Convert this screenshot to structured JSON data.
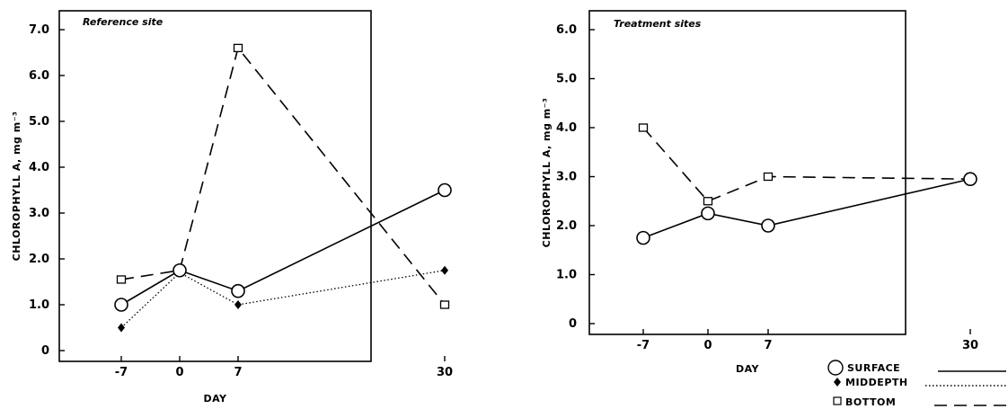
{
  "chart_data": [
    {
      "type": "line",
      "title": "Reference site",
      "xlabel": "DAY",
      "ylabel": "CHLOROPHYLL A, mg m⁻³",
      "x_ticks": [
        "-7",
        "0",
        "7",
        "30"
      ],
      "y_ticks": [
        "0",
        "1.0",
        "2.0",
        "3.0",
        "4.0",
        "5.0",
        "6.0",
        "7.0"
      ],
      "ylim": [
        0,
        7.0
      ],
      "series": [
        {
          "name": "SURFACE",
          "x": [
            -7,
            0,
            7,
            30
          ],
          "values": [
            1.0,
            1.75,
            1.3,
            3.5
          ]
        },
        {
          "name": "MIDDEPTH",
          "x": [
            -7,
            0,
            7,
            30
          ],
          "values": [
            0.5,
            1.7,
            1.0,
            1.75
          ]
        },
        {
          "name": "BOTTOM",
          "x": [
            -7,
            0,
            7,
            30
          ],
          "values": [
            1.55,
            1.75,
            6.6,
            1.0
          ]
        }
      ]
    },
    {
      "type": "line",
      "title": "Treatment sites",
      "xlabel": "DAY",
      "ylabel": "CHLOROPHYLL A, mg m⁻³",
      "x_ticks": [
        "-7",
        "0",
        "7",
        "30"
      ],
      "y_ticks": [
        "0",
        "1.0",
        "2.0",
        "3.0",
        "4.0",
        "5.0",
        "6.0"
      ],
      "ylim": [
        0,
        6.0
      ],
      "series": [
        {
          "name": "SURFACE",
          "x": [
            -7,
            0,
            7,
            30
          ],
          "values": [
            1.75,
            2.25,
            2.0,
            2.95
          ]
        },
        {
          "name": "BOTTOM",
          "x": [
            -7,
            0,
            7,
            30
          ],
          "values": [
            4.0,
            2.5,
            3.0,
            2.95
          ]
        }
      ]
    }
  ],
  "legend": {
    "placement": "bottom-right",
    "items": [
      {
        "label": "SURFACE",
        "marker": "open-circle",
        "line": "solid"
      },
      {
        "label": "MIDDEPTH",
        "marker": "filled-diamond",
        "line": "dotted"
      },
      {
        "label": "BOTTOM",
        "marker": "open-square",
        "line": "dashed"
      }
    ]
  }
}
